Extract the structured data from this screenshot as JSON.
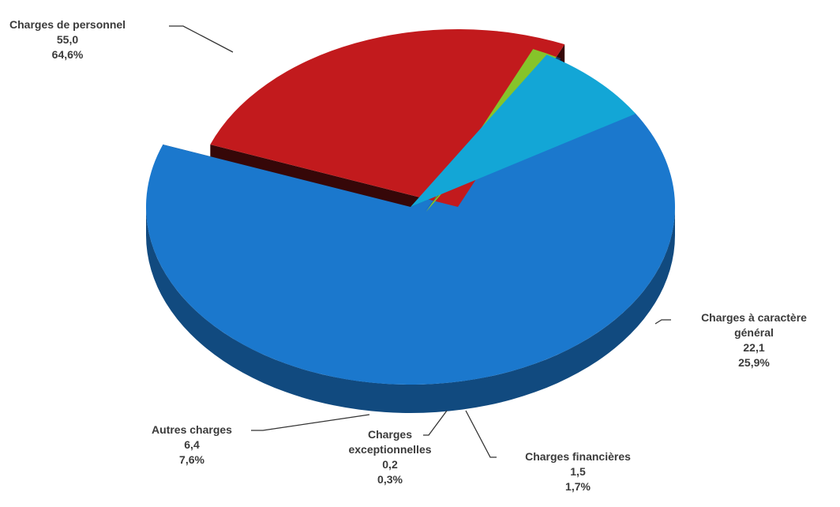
{
  "chart_data": {
    "type": "pie",
    "title": "",
    "slices": [
      {
        "label": "Charges de personnel",
        "value": "55,0",
        "percent": "64,6%",
        "pct": 64.6,
        "color": "#1b78cd"
      },
      {
        "label_line1": "Charges à caractère",
        "label_line2": "général",
        "value": "22,1",
        "percent": "25,9%",
        "pct": 25.9,
        "color": "#c21a1d"
      },
      {
        "label": "Charges financières",
        "value": "1,5",
        "percent": "1,7%",
        "pct": 1.7,
        "color": "#86c42a"
      },
      {
        "label_line1": "Charges",
        "label_line2": "exceptionnelles",
        "value": "0,2",
        "percent": "0,3%",
        "pct": 0.3,
        "color": "#1d3b6e"
      },
      {
        "label": "Autres charges",
        "value": "6,4",
        "percent": "7,6%",
        "pct": 7.6,
        "color": "#13a6d6"
      }
    ]
  }
}
